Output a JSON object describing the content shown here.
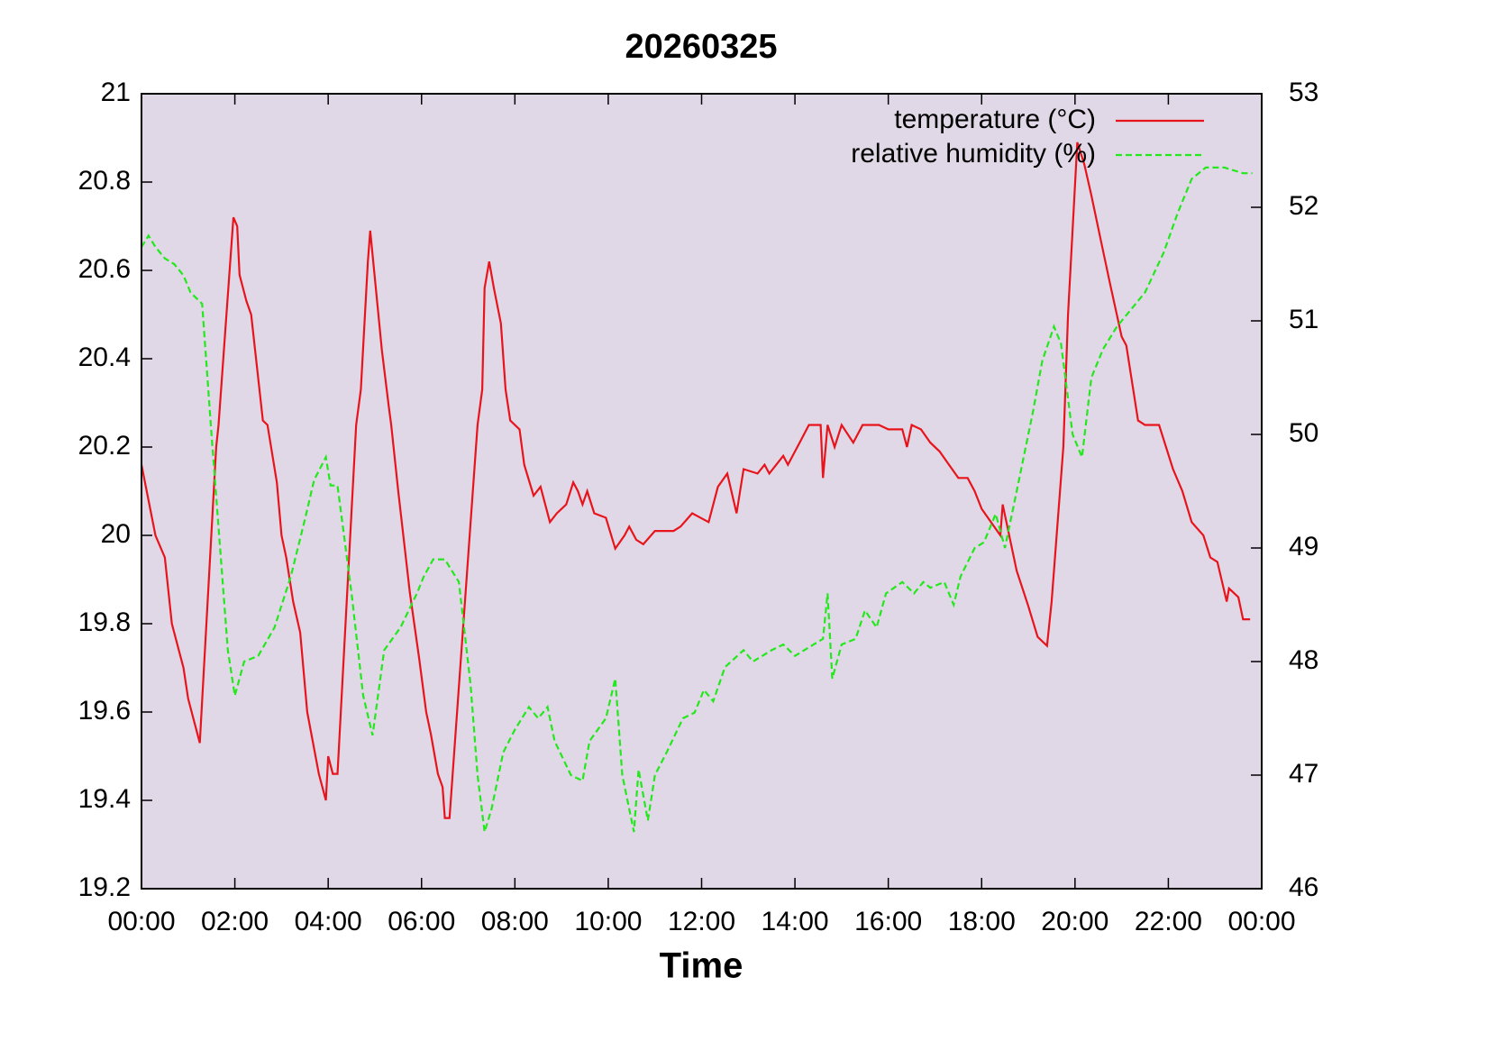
{
  "chart_data": {
    "type": "line",
    "title": "20260325",
    "xlabel": "Time",
    "background": "#e0d8e6",
    "legend": "upper right",
    "xlim": [
      0,
      24
    ],
    "xticks": [
      {
        "value": 0,
        "label": "00:00"
      },
      {
        "value": 2,
        "label": "02:00"
      },
      {
        "value": 4,
        "label": "04:00"
      },
      {
        "value": 6,
        "label": "06:00"
      },
      {
        "value": 8,
        "label": "08:00"
      },
      {
        "value": 10,
        "label": "10:00"
      },
      {
        "value": 12,
        "label": "12:00"
      },
      {
        "value": 14,
        "label": "14:00"
      },
      {
        "value": 16,
        "label": "16:00"
      },
      {
        "value": 18,
        "label": "18:00"
      },
      {
        "value": 20,
        "label": "20:00"
      },
      {
        "value": 22,
        "label": "22:00"
      },
      {
        "value": 24,
        "label": "00:00"
      }
    ],
    "ylim": [
      19.2,
      21
    ],
    "yticks": [
      19.2,
      19.4,
      19.6,
      19.8,
      20,
      20.2,
      20.4,
      20.6,
      20.8,
      21
    ],
    "y2lim": [
      46,
      53
    ],
    "y2ticks": [
      46,
      47,
      48,
      49,
      50,
      51,
      52,
      53
    ],
    "series": [
      {
        "name": "temperature (°C)",
        "color": "#e8141c",
        "dash": "solid",
        "x": [
          0,
          0.3,
          0.5,
          0.65,
          0.9,
          1.0,
          1.25,
          1.6,
          1.65,
          1.97,
          2.05,
          2.1,
          2.25,
          2.35,
          2.6,
          2.7,
          2.9,
          3.0,
          3.1,
          3.25,
          3.4,
          3.55,
          3.8,
          3.95,
          4.0,
          4.1,
          4.2,
          4.6,
          4.7,
          4.85,
          4.9,
          5.15,
          5.3,
          5.35,
          5.5,
          5.75,
          5.95,
          6.1,
          6.2,
          6.35,
          6.45,
          6.5,
          6.6,
          7.2,
          7.3,
          7.35,
          7.45,
          7.55,
          7.7,
          7.8,
          7.9,
          8.1,
          8.2,
          8.4,
          8.55,
          8.75,
          8.9,
          9.1,
          9.25,
          9.35,
          9.45,
          9.55,
          9.7,
          9.95,
          10.15,
          10.35,
          10.45,
          10.6,
          10.75,
          11.0,
          11.4,
          11.55,
          11.8,
          12.15,
          12.35,
          12.55,
          12.75,
          12.9,
          13.2,
          13.35,
          13.45,
          13.75,
          13.85,
          14.1,
          14.3,
          14.55,
          14.6,
          14.7,
          14.85,
          15.0,
          15.25,
          15.45,
          15.8,
          16.0,
          16.3,
          16.4,
          16.5,
          16.7,
          16.9,
          17.1,
          17.3,
          17.5,
          17.7,
          17.85,
          18.0,
          18.2,
          18.4,
          18.45,
          18.75,
          19.0,
          19.2,
          19.4,
          19.5,
          19.75,
          19.85,
          20.05,
          20.2,
          20.35,
          20.55,
          20.75,
          21.0,
          21.1,
          21.35,
          21.5,
          21.8,
          22.1,
          22.3,
          22.5,
          22.75,
          22.9,
          23.05,
          23.25,
          23.3,
          23.5,
          23.6,
          23.75
        ],
        "values": [
          20.16,
          20.0,
          19.95,
          19.8,
          19.7,
          19.63,
          19.53,
          20.2,
          20.25,
          20.72,
          20.7,
          20.59,
          20.53,
          20.5,
          20.26,
          20.25,
          20.12,
          20.0,
          19.95,
          19.85,
          19.78,
          19.6,
          19.46,
          19.4,
          19.5,
          19.46,
          19.46,
          20.25,
          20.33,
          20.62,
          20.69,
          20.42,
          20.29,
          20.25,
          20.1,
          19.87,
          19.72,
          19.6,
          19.55,
          19.46,
          19.43,
          19.36,
          19.36,
          20.25,
          20.33,
          20.56,
          20.62,
          20.56,
          20.48,
          20.33,
          20.26,
          20.24,
          20.16,
          20.09,
          20.11,
          20.03,
          20.05,
          20.07,
          20.12,
          20.1,
          20.07,
          20.1,
          20.05,
          20.04,
          19.97,
          20.0,
          20.02,
          19.99,
          19.98,
          20.01,
          20.01,
          20.02,
          20.05,
          20.03,
          20.11,
          20.14,
          20.05,
          20.15,
          20.14,
          20.16,
          20.14,
          20.18,
          20.16,
          20.21,
          20.25,
          20.25,
          20.13,
          20.25,
          20.2,
          20.25,
          20.21,
          20.25,
          20.25,
          20.24,
          20.24,
          20.2,
          20.25,
          20.24,
          20.21,
          20.19,
          20.16,
          20.13,
          20.13,
          20.1,
          20.06,
          20.03,
          20.0,
          20.07,
          19.92,
          19.84,
          19.77,
          19.75,
          19.85,
          20.2,
          20.5,
          20.89,
          20.84,
          20.77,
          20.67,
          20.57,
          20.45,
          20.43,
          20.26,
          20.25,
          20.25,
          20.15,
          20.1,
          20.03,
          20.0,
          19.95,
          19.94,
          19.85,
          19.88,
          19.86,
          19.81,
          19.81
        ]
      },
      {
        "name": "relative humidity (%)",
        "color": "#22e81c",
        "dash": "dashed",
        "axis": "y2",
        "x": [
          0,
          0.15,
          0.3,
          0.5,
          0.7,
          0.9,
          1.05,
          1.3,
          1.5,
          1.85,
          2.0,
          2.2,
          2.5,
          2.85,
          3.2,
          3.5,
          3.7,
          3.95,
          4.05,
          4.2,
          4.5,
          4.75,
          4.95,
          5.2,
          5.55,
          5.9,
          6.05,
          6.25,
          6.5,
          6.8,
          7.05,
          7.2,
          7.35,
          7.5,
          7.75,
          8.0,
          8.3,
          8.5,
          8.7,
          8.85,
          9.2,
          9.45,
          9.6,
          9.95,
          10.15,
          10.3,
          10.55,
          10.65,
          10.85,
          11.0,
          11.25,
          11.6,
          11.85,
          12.05,
          12.25,
          12.5,
          12.9,
          13.1,
          13.5,
          13.75,
          14.0,
          14.4,
          14.6,
          14.7,
          14.8,
          15.0,
          15.3,
          15.5,
          15.75,
          15.95,
          16.3,
          16.55,
          16.75,
          16.9,
          17.2,
          17.4,
          17.55,
          17.85,
          18.05,
          18.3,
          18.5,
          18.8,
          19.1,
          19.3,
          19.55,
          19.7,
          19.95,
          20.15,
          20.35,
          20.6,
          20.9,
          21.2,
          21.5,
          21.9,
          22.2,
          22.5,
          22.8,
          23.2,
          23.6,
          23.8
        ],
        "values": [
          51.65,
          51.75,
          51.65,
          51.55,
          51.5,
          51.4,
          51.25,
          51.15,
          50.0,
          48.1,
          47.7,
          48.0,
          48.05,
          48.3,
          48.75,
          49.25,
          49.6,
          49.8,
          49.55,
          49.55,
          48.6,
          47.7,
          47.35,
          48.1,
          48.3,
          48.6,
          48.75,
          48.9,
          48.9,
          48.7,
          47.8,
          47.0,
          46.5,
          46.7,
          47.2,
          47.4,
          47.6,
          47.5,
          47.6,
          47.3,
          47.0,
          46.95,
          47.3,
          47.5,
          47.85,
          47.0,
          46.5,
          47.05,
          46.6,
          47.0,
          47.2,
          47.5,
          47.55,
          47.75,
          47.65,
          47.95,
          48.1,
          48.0,
          48.1,
          48.15,
          48.05,
          48.15,
          48.2,
          48.6,
          47.85,
          48.15,
          48.2,
          48.45,
          48.3,
          48.6,
          48.7,
          48.6,
          48.7,
          48.65,
          48.7,
          48.5,
          48.75,
          49.0,
          49.05,
          49.3,
          49.0,
          49.6,
          50.2,
          50.65,
          50.95,
          50.8,
          50.0,
          49.8,
          50.5,
          50.75,
          50.95,
          51.1,
          51.25,
          51.6,
          51.95,
          52.25,
          52.35,
          52.35,
          52.3,
          52.3
        ]
      }
    ]
  }
}
